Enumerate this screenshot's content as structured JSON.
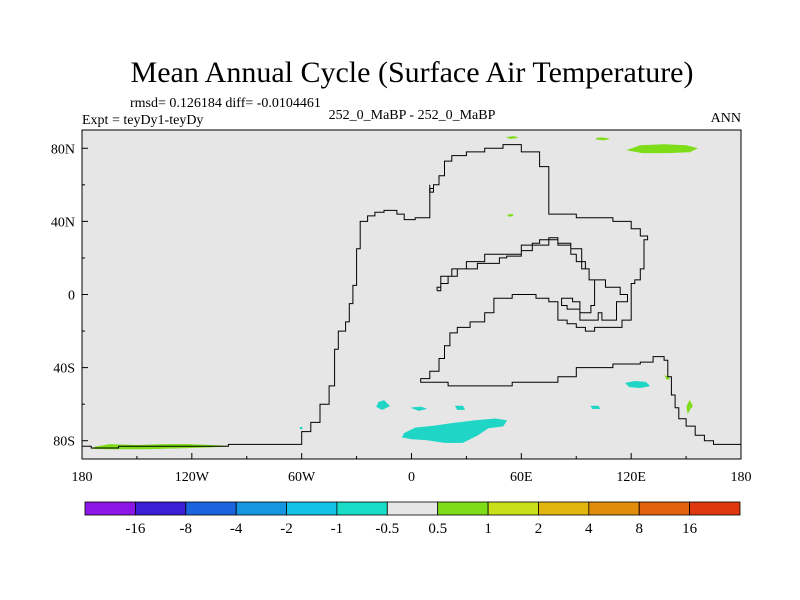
{
  "chart_data": {
    "type": "contour-map",
    "title": "Mean Annual Cycle (Surface Air Temperature)",
    "stats_line": "rmsd= 0.126184 diff= -0.0104461",
    "experiment_label": "Expt = teyDy1-teyDy",
    "case_label": "252_0_MaBP - 252_0_MaBP",
    "season_label": "ANN",
    "xlim": [
      -180,
      180
    ],
    "ylim": [
      -90,
      90
    ],
    "x_ticks": [
      {
        "value": -180,
        "label": "180"
      },
      {
        "value": -120,
        "label": "120W"
      },
      {
        "value": -60,
        "label": "60W"
      },
      {
        "value": 0,
        "label": "0"
      },
      {
        "value": 60,
        "label": "60E"
      },
      {
        "value": 120,
        "label": "120E"
      },
      {
        "value": 180,
        "label": "180"
      }
    ],
    "y_ticks": [
      {
        "value": 80,
        "label": "80N"
      },
      {
        "value": 40,
        "label": "40N"
      },
      {
        "value": 0,
        "label": "0"
      },
      {
        "value": -40,
        "label": "40S"
      },
      {
        "value": -80,
        "label": "80S"
      }
    ],
    "background_color": "#e6e6e6",
    "coastline": [
      [
        [
          -180,
          -83
        ],
        [
          -175,
          -83
        ],
        [
          -175,
          -84
        ],
        [
          -160,
          -84
        ],
        [
          -160,
          -83
        ],
        [
          -100,
          -83
        ],
        [
          -100,
          -82
        ],
        [
          -80,
          -82
        ],
        [
          -60,
          -82
        ],
        [
          -60,
          -75
        ],
        [
          -55,
          -75
        ],
        [
          -55,
          -70
        ],
        [
          -50,
          -70
        ],
        [
          -50,
          -60
        ],
        [
          -45,
          -60
        ],
        [
          -45,
          -50
        ],
        [
          -42,
          -50
        ],
        [
          -42,
          -30
        ],
        [
          -40,
          -30
        ],
        [
          -40,
          -20
        ],
        [
          -36,
          -20
        ],
        [
          -36,
          -15
        ],
        [
          -34,
          -15
        ],
        [
          -34,
          -5
        ],
        [
          -32,
          -5
        ],
        [
          -32,
          5
        ],
        [
          -30,
          5
        ],
        [
          -30,
          25
        ],
        [
          -28,
          25
        ],
        [
          -28,
          40
        ],
        [
          -24,
          40
        ],
        [
          -24,
          43
        ],
        [
          -20,
          43
        ],
        [
          -20,
          45
        ],
        [
          -15,
          45
        ],
        [
          -15,
          46
        ],
        [
          -8,
          46
        ],
        [
          -8,
          44
        ],
        [
          -4,
          44
        ],
        [
          -4,
          41
        ],
        [
          2,
          41
        ],
        [
          2,
          42
        ],
        [
          10,
          42
        ],
        [
          10,
          58
        ],
        [
          12,
          58
        ],
        [
          12,
          60
        ],
        [
          15,
          60
        ],
        [
          15,
          65
        ],
        [
          18,
          65
        ],
        [
          18,
          73
        ],
        [
          22,
          73
        ],
        [
          22,
          76
        ],
        [
          30,
          76
        ],
        [
          30,
          78
        ],
        [
          40,
          78
        ],
        [
          40,
          80
        ],
        [
          50,
          80
        ],
        [
          50,
          82
        ],
        [
          60,
          82
        ],
        [
          60,
          78
        ],
        [
          70,
          78
        ],
        [
          70,
          70
        ],
        [
          75,
          70
        ],
        [
          75,
          44
        ],
        [
          90,
          44
        ],
        [
          90,
          42
        ],
        [
          110,
          42
        ],
        [
          110,
          40
        ],
        [
          120,
          40
        ],
        [
          120,
          36
        ],
        [
          125,
          36
        ],
        [
          125,
          32
        ],
        [
          129,
          32
        ],
        [
          129,
          30
        ],
        [
          127,
          30
        ],
        [
          127,
          14
        ],
        [
          125,
          14
        ],
        [
          125,
          8
        ],
        [
          122,
          8
        ],
        [
          122,
          6
        ],
        [
          120,
          6
        ],
        [
          120,
          -14
        ],
        [
          115,
          -14
        ],
        [
          115,
          -18
        ],
        [
          100,
          -18
        ],
        [
          100,
          -20
        ],
        [
          95,
          -20
        ],
        [
          95,
          -18
        ],
        [
          90,
          -18
        ],
        [
          90,
          -16
        ],
        [
          85,
          -16
        ],
        [
          85,
          -14
        ],
        [
          80,
          -14
        ],
        [
          80,
          -4
        ],
        [
          75,
          -4
        ],
        [
          75,
          -2
        ],
        [
          68,
          -2
        ],
        [
          68,
          0
        ],
        [
          55,
          0
        ],
        [
          55,
          -2
        ],
        [
          45,
          -2
        ],
        [
          45,
          -10
        ],
        [
          40,
          -10
        ],
        [
          40,
          -15
        ],
        [
          32,
          -15
        ],
        [
          32,
          -18
        ],
        [
          25,
          -18
        ],
        [
          25,
          -21
        ],
        [
          21,
          -21
        ],
        [
          21,
          -28
        ],
        [
          18,
          -28
        ],
        [
          18,
          -35
        ],
        [
          15,
          -35
        ],
        [
          15,
          -42
        ],
        [
          10,
          -42
        ],
        [
          10,
          -46
        ],
        [
          5,
          -46
        ],
        [
          5,
          -48
        ],
        [
          20,
          -48
        ],
        [
          20,
          -50
        ],
        [
          55,
          -50
        ],
        [
          55,
          -48
        ],
        [
          80,
          -48
        ],
        [
          80,
          -45
        ],
        [
          90,
          -45
        ],
        [
          90,
          -40
        ],
        [
          110,
          -40
        ],
        [
          110,
          -38
        ],
        [
          125,
          -38
        ],
        [
          125,
          -37
        ],
        [
          132,
          -37
        ],
        [
          132,
          -34
        ],
        [
          138,
          -34
        ],
        [
          138,
          -36
        ],
        [
          140,
          -36
        ],
        [
          140,
          -45
        ],
        [
          142,
          -45
        ],
        [
          142,
          -55
        ],
        [
          144,
          -55
        ],
        [
          144,
          -62
        ],
        [
          146,
          -62
        ],
        [
          146,
          -68
        ],
        [
          150,
          -68
        ],
        [
          150,
          -72
        ],
        [
          155,
          -72
        ],
        [
          155,
          -77
        ],
        [
          160,
          -77
        ],
        [
          160,
          -80
        ],
        [
          165,
          -80
        ],
        [
          165,
          -82
        ],
        [
          180,
          -82
        ]
      ],
      [
        [
          14,
          2
        ],
        [
          14,
          4
        ],
        [
          16,
          4
        ],
        [
          16,
          10
        ],
        [
          22,
          10
        ],
        [
          22,
          14
        ],
        [
          36,
          14
        ],
        [
          36,
          17
        ],
        [
          48,
          17
        ],
        [
          48,
          20
        ],
        [
          52,
          20
        ],
        [
          52,
          21
        ],
        [
          60,
          21
        ],
        [
          60,
          24
        ],
        [
          66,
          24
        ],
        [
          66,
          28
        ],
        [
          70,
          28
        ],
        [
          70,
          30
        ],
        [
          75,
          30
        ],
        [
          75,
          31
        ],
        [
          80,
          31
        ],
        [
          80,
          27
        ],
        [
          87,
          27
        ],
        [
          87,
          22
        ],
        [
          90,
          22
        ],
        [
          90,
          18
        ],
        [
          95,
          18
        ],
        [
          95,
          14
        ],
        [
          97,
          14
        ],
        [
          97,
          8
        ],
        [
          100,
          8
        ],
        [
          100,
          -6
        ],
        [
          98,
          -6
        ],
        [
          98,
          -10
        ],
        [
          92,
          -10
        ],
        [
          92,
          -4
        ],
        [
          88,
          -4
        ],
        [
          88,
          -2
        ],
        [
          82,
          -2
        ],
        [
          82,
          -6
        ],
        [
          85,
          -6
        ],
        [
          85,
          -8
        ],
        [
          92,
          -8
        ],
        [
          92,
          -14
        ],
        [
          102,
          -14
        ],
        [
          102,
          -10
        ],
        [
          104,
          -10
        ],
        [
          104,
          -14
        ],
        [
          112,
          -14
        ],
        [
          112,
          -4
        ],
        [
          118,
          -4
        ],
        [
          118,
          0
        ],
        [
          114,
          0
        ],
        [
          114,
          4
        ],
        [
          106,
          4
        ],
        [
          106,
          8
        ],
        [
          97,
          8
        ],
        [
          97,
          14
        ],
        [
          93,
          14
        ],
        [
          93,
          25
        ],
        [
          87,
          25
        ],
        [
          87,
          28
        ],
        [
          80,
          28
        ],
        [
          80,
          30
        ],
        [
          75,
          30
        ],
        [
          75,
          27
        ],
        [
          60,
          27
        ],
        [
          60,
          22
        ],
        [
          40,
          22
        ],
        [
          40,
          18
        ],
        [
          30,
          18
        ],
        [
          30,
          14
        ],
        [
          25,
          14
        ],
        [
          25,
          10
        ],
        [
          20,
          10
        ],
        [
          20,
          6
        ],
        [
          16,
          6
        ],
        [
          16,
          2
        ],
        [
          14,
          2
        ]
      ],
      [
        [
          10,
          60
        ],
        [
          10,
          56
        ],
        [
          12,
          56
        ],
        [
          12,
          60
        ]
      ]
    ],
    "anomaly_patches": [
      {
        "color": "#7fdc18",
        "bin": "0.5 to 1",
        "points": [
          [
            -173,
            -83.5
          ],
          [
            -165,
            -82
          ],
          [
            -150,
            -82.5
          ],
          [
            -135,
            -82
          ],
          [
            -122,
            -82
          ],
          [
            -110,
            -82.5
          ],
          [
            -100,
            -83
          ],
          [
            -110,
            -83.5
          ],
          [
            -125,
            -84
          ],
          [
            -145,
            -84.5
          ],
          [
            -165,
            -84.5
          ],
          [
            -174,
            -84.3
          ]
        ]
      },
      {
        "color": "#7fdc18",
        "bin": "0.5 to 1",
        "points": [
          [
            118,
            79
          ],
          [
            125,
            81.5
          ],
          [
            138,
            82
          ],
          [
            150,
            81.5
          ],
          [
            156,
            80
          ],
          [
            152,
            78
          ],
          [
            140,
            77.5
          ],
          [
            126,
            77.5
          ]
        ]
      },
      {
        "color": "#7fdc18",
        "bin": "0.5 to 1",
        "points": [
          [
            101,
            85.5
          ],
          [
            104,
            85.8
          ],
          [
            108,
            85.2
          ],
          [
            105,
            84.5
          ],
          [
            101,
            85
          ]
        ]
      },
      {
        "color": "#7fdc18",
        "bin": "0.5 to 1",
        "points": [
          [
            52,
            86
          ],
          [
            56,
            86.5
          ],
          [
            58,
            85.8
          ],
          [
            54,
            85.3
          ]
        ]
      },
      {
        "color": "#7fdc18",
        "bin": "0.5 to 1",
        "points": [
          [
            52.5,
            43.5
          ],
          [
            55,
            44
          ],
          [
            55.5,
            43
          ],
          [
            53,
            42.8
          ]
        ]
      },
      {
        "color": "#7fdc18",
        "bin": "0.5 to 1",
        "points": [
          [
            150.5,
            -61
          ],
          [
            152,
            -58
          ],
          [
            153.5,
            -61
          ],
          [
            152,
            -63
          ],
          [
            151,
            -65
          ],
          [
            150.5,
            -63
          ]
        ]
      },
      {
        "color": "#7fdc18",
        "bin": "0.5 to 1",
        "points": [
          [
            138.5,
            -44.5
          ],
          [
            140,
            -45
          ],
          [
            141,
            -46
          ],
          [
            139.5,
            -46.5
          ]
        ]
      },
      {
        "color": "#1fd6c6",
        "bin": "-1 to -0.5",
        "points": [
          [
            -4,
            -76
          ],
          [
            2,
            -73
          ],
          [
            12,
            -72
          ],
          [
            22,
            -70.5
          ],
          [
            35,
            -69
          ],
          [
            46,
            -68
          ],
          [
            52,
            -69
          ],
          [
            50,
            -72
          ],
          [
            42,
            -73
          ],
          [
            36,
            -77
          ],
          [
            28,
            -81
          ],
          [
            18,
            -81
          ],
          [
            8,
            -79.5
          ],
          [
            0,
            -79
          ],
          [
            -5,
            -78
          ]
        ]
      },
      {
        "color": "#1fd6c6",
        "bin": "-1 to -0.5",
        "points": [
          [
            -18,
            -59
          ],
          [
            -15,
            -58
          ],
          [
            -12,
            -61
          ],
          [
            -16,
            -63
          ],
          [
            -19,
            -61.5
          ]
        ]
      },
      {
        "color": "#1fd6c6",
        "bin": "-1 to -0.5",
        "points": [
          [
            0,
            -62
          ],
          [
            5,
            -61.5
          ],
          [
            8,
            -62.5
          ],
          [
            4,
            -63.5
          ]
        ]
      },
      {
        "color": "#1fd6c6",
        "bin": "-1 to -0.5",
        "points": [
          [
            24,
            -61
          ],
          [
            28,
            -61
          ],
          [
            29,
            -63
          ],
          [
            25,
            -63
          ]
        ]
      },
      {
        "color": "#1fd6c6",
        "bin": "-1 to -0.5",
        "points": [
          [
            98,
            -61
          ],
          [
            102,
            -61
          ],
          [
            103,
            -62.5
          ],
          [
            99,
            -62.5
          ]
        ]
      },
      {
        "color": "#1fd6c6",
        "bin": "-1 to -0.5",
        "points": [
          [
            117,
            -48.5
          ],
          [
            122,
            -47.5
          ],
          [
            128,
            -48
          ],
          [
            130,
            -50
          ],
          [
            125,
            -51
          ],
          [
            119,
            -50.5
          ]
        ]
      },
      {
        "color": "#1fd6c6",
        "bin": "-1 to -0.5",
        "points": [
          [
            -61,
            -72.8
          ],
          [
            -60,
            -72.5
          ],
          [
            -59.6,
            -73.4
          ],
          [
            -60.6,
            -73.6
          ]
        ]
      }
    ],
    "colorbar": {
      "colors": [
        "#8c17e6",
        "#3a1fd6",
        "#1a64e0",
        "#1596e0",
        "#13c2e6",
        "#19dcc6",
        "#e6e6e6",
        "#7fdc18",
        "#c8e01a",
        "#e2b60e",
        "#e28c0c",
        "#e2620e",
        "#e0380e"
      ],
      "labels": [
        "-16",
        "-8",
        "-4",
        "-2",
        "-1",
        "-0.5",
        "0.5",
        "1",
        "2",
        "4",
        "8",
        "16"
      ]
    }
  }
}
